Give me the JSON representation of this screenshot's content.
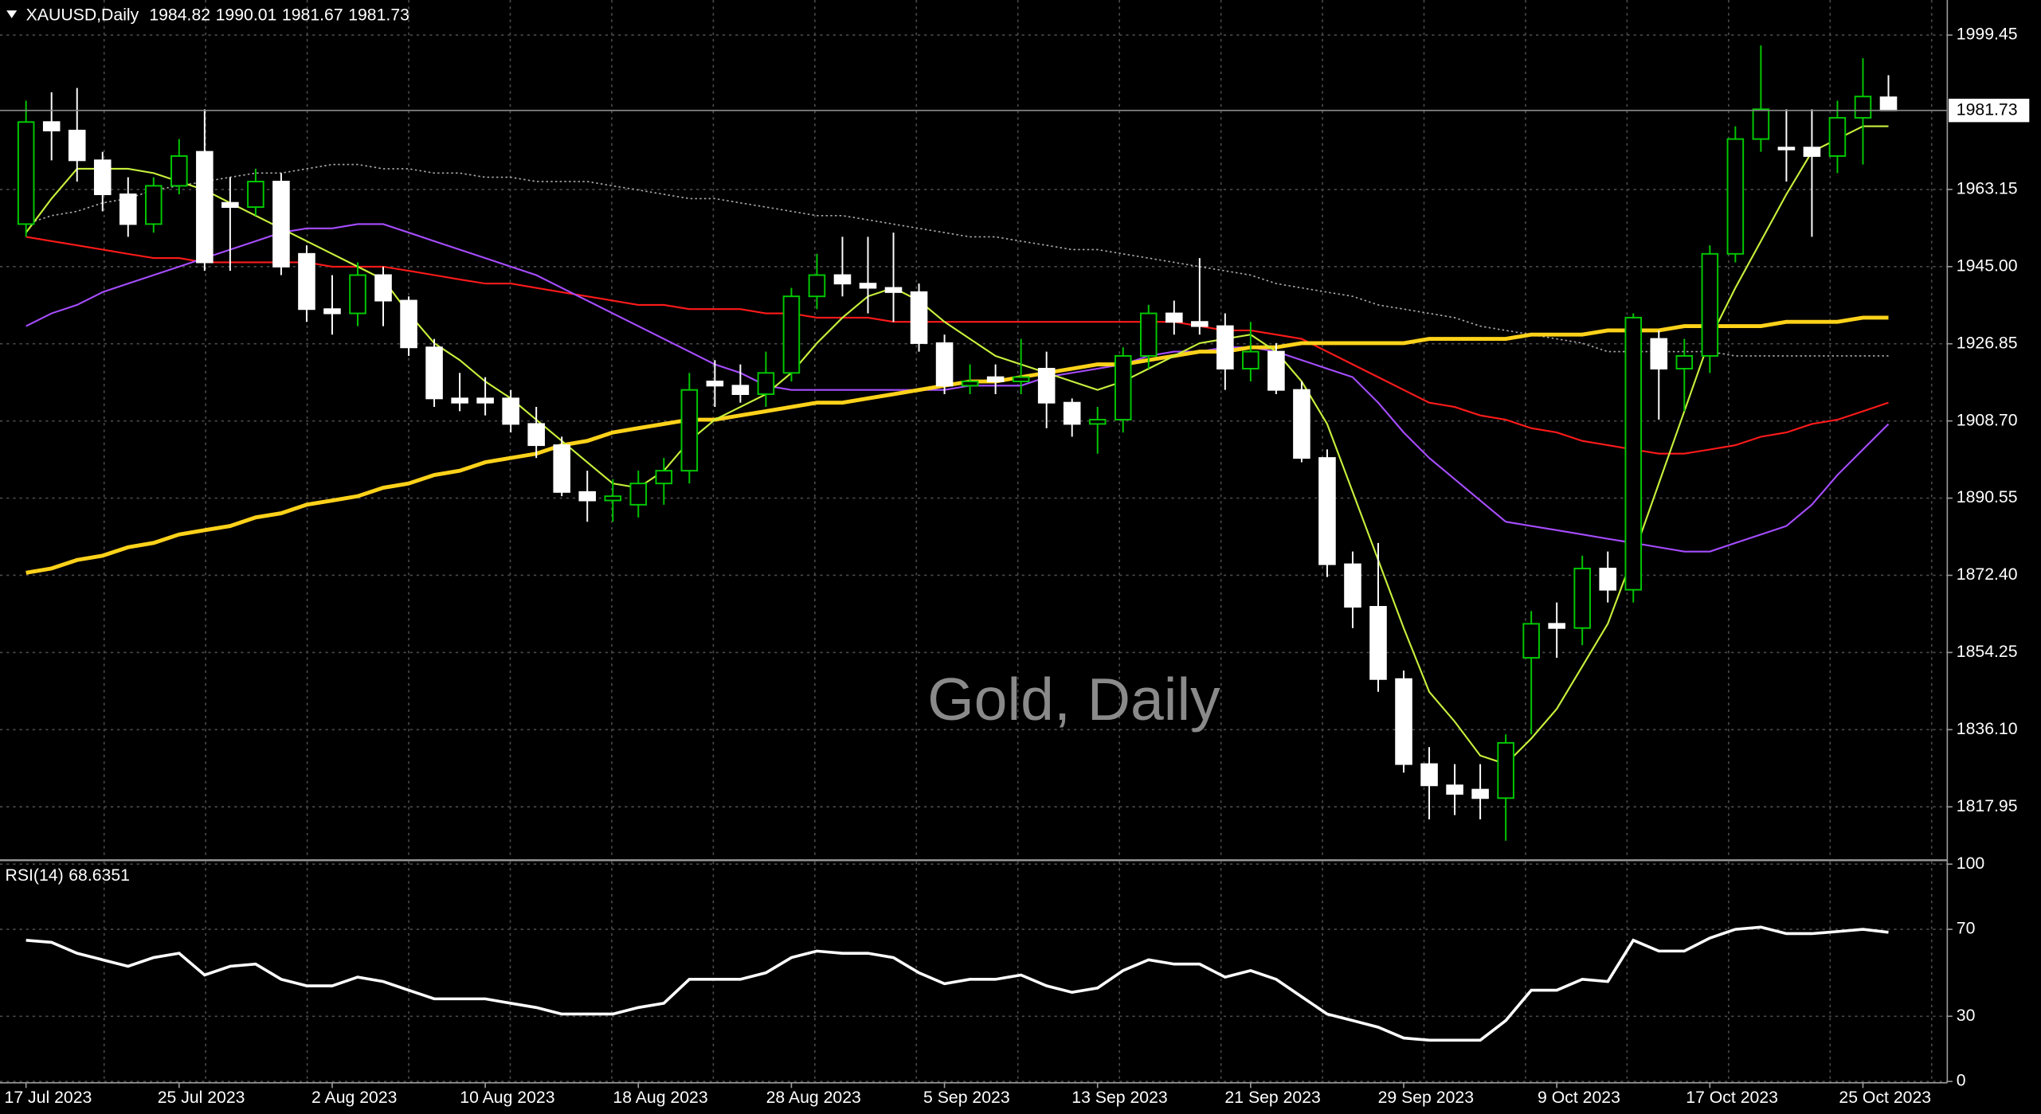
{
  "chart_data": {
    "type": "candlestick",
    "symbol": "XAUUSD,Daily",
    "watermark": "Gold, Daily",
    "background": "#000000",
    "bull_color": "#00c800",
    "bear_color": "#ffffff",
    "grid": true,
    "categories": [
      "17 Jul 2023",
      null,
      null,
      null,
      null,
      null,
      "25 Jul 2023",
      null,
      null,
      null,
      null,
      null,
      "2 Aug 2023",
      null,
      null,
      null,
      null,
      null,
      "10 Aug 2023",
      null,
      null,
      null,
      null,
      null,
      "18 Aug 2023",
      null,
      null,
      null,
      null,
      null,
      "28 Aug 2023",
      null,
      null,
      null,
      null,
      null,
      "5 Sep 2023",
      null,
      null,
      null,
      null,
      null,
      "13 Sep 2023",
      null,
      null,
      null,
      null,
      null,
      "21 Sep 2023",
      null,
      null,
      null,
      null,
      null,
      "29 Sep 2023",
      null,
      null,
      null,
      null,
      null,
      "9 Oct 2023",
      null,
      null,
      null,
      null,
      null,
      "17 Oct 2023",
      null,
      null,
      null,
      null,
      null,
      "25 Oct 2023",
      null
    ],
    "open": [
      1955,
      1979,
      1977,
      1970,
      1962,
      1955,
      1964,
      1972,
      1960,
      1959,
      1965,
      1948,
      1935,
      1934,
      1943,
      1937,
      1926,
      1914,
      1914,
      1914,
      1908,
      1903,
      1892,
      1890,
      1889,
      1894,
      1897,
      1918,
      1917,
      1915,
      1920,
      1938,
      1943,
      1941,
      1940,
      1939,
      1927,
      1917,
      1919,
      1918,
      1921,
      1913,
      1908,
      1909,
      1924,
      1934,
      1932,
      1931,
      1921,
      1925,
      1916,
      1900,
      1875,
      1865,
      1848,
      1828,
      1823,
      1822,
      1820,
      1853,
      1861,
      1860,
      1874,
      1869,
      1928,
      1921,
      1924,
      1948,
      1975,
      1973,
      1973,
      1971,
      1980,
      1984.82
    ],
    "high": [
      1984,
      1986,
      1987,
      1972,
      1966,
      1966,
      1975,
      1982,
      1966,
      1968,
      1967,
      1950,
      1943,
      1946,
      1945,
      1938,
      1928,
      1920,
      1919,
      1916,
      1912,
      1905,
      1897,
      1895,
      1897,
      1900,
      1920,
      1923,
      1922,
      1925,
      1940,
      1948,
      1952,
      1952,
      1953,
      1941,
      1929,
      1922,
      1922,
      1928,
      1925,
      1914,
      1912,
      1926,
      1936,
      1937,
      1947,
      1934,
      1932,
      1927,
      1918,
      1902,
      1878,
      1880,
      1850,
      1832,
      1828,
      1828,
      1835,
      1864,
      1866,
      1877,
      1878,
      1934,
      1930,
      1928,
      1950,
      1978,
      1997,
      1982,
      1982,
      1984,
      1994,
      1990.01
    ],
    "low": [
      1952,
      1970,
      1965,
      1958,
      1952,
      1953,
      1962,
      1944,
      1944,
      1957,
      1943,
      1932,
      1929,
      1931,
      1931,
      1924,
      1912,
      1911,
      1910,
      1906,
      1900,
      1891,
      1885,
      1885,
      1886,
      1889,
      1894,
      1912,
      1913,
      1912,
      1918,
      1935,
      1938,
      1934,
      1932,
      1925,
      1915,
      1915,
      1915,
      1915,
      1907,
      1905,
      1901,
      1906,
      1921,
      1929,
      1929,
      1916,
      1918,
      1915,
      1899,
      1872,
      1860,
      1845,
      1826,
      1815,
      1816,
      1815,
      1810,
      1835,
      1853,
      1856,
      1866,
      1866,
      1909,
      1911,
      1920,
      1946,
      1972,
      1965,
      1952,
      1967,
      1969,
      1981.67
    ],
    "close": [
      1979,
      1977,
      1970,
      1962,
      1955,
      1964,
      1971,
      1946,
      1959,
      1965,
      1945,
      1935,
      1934,
      1943,
      1937,
      1926,
      1914,
      1913,
      1913,
      1908,
      1903,
      1892,
      1890,
      1891,
      1894,
      1897,
      1916,
      1917,
      1915,
      1920,
      1938,
      1943,
      1941,
      1940,
      1939,
      1927,
      1917,
      1918,
      1918,
      1919,
      1913,
      1908,
      1909,
      1924,
      1934,
      1932,
      1931,
      1921,
      1925,
      1916,
      1900,
      1875,
      1865,
      1848,
      1828,
      1823,
      1821,
      1820,
      1833,
      1861,
      1860,
      1874,
      1869,
      1933,
      1921,
      1924,
      1948,
      1975,
      1982,
      1973,
      1971,
      1980,
      1985,
      1981.73
    ],
    "overlays": [
      {
        "color": "#aaaaaa",
        "style": "dotted",
        "values": [
          1955,
          1957,
          1958,
          1960,
          1961,
          1963,
          1964,
          1965,
          1966,
          1967,
          1967,
          1968,
          1969,
          1969,
          1968,
          1968,
          1967,
          1967,
          1966,
          1966,
          1965,
          1965,
          1965,
          1964,
          1963,
          1962,
          1961,
          1961,
          1960,
          1959,
          1958,
          1957,
          1957,
          1956,
          1955,
          1954,
          1953,
          1952,
          1952,
          1951,
          1950,
          1949,
          1949,
          1948,
          1947,
          1946,
          1945,
          1944,
          1943,
          1941,
          1940,
          1939,
          1938,
          1936,
          1935,
          1934,
          1933,
          1931,
          1930,
          1929,
          1928,
          1927,
          1925,
          1925,
          1925,
          1925,
          1925,
          1924,
          1924,
          1924,
          1924,
          1924,
          1924,
          1924
        ]
      },
      {
        "color": "#ff1a1a",
        "style": "thin",
        "values": [
          1952,
          1951,
          1950,
          1949,
          1948,
          1947,
          1947,
          1946,
          1946,
          1946,
          1946,
          1946,
          1945,
          1945,
          1945,
          1944,
          1943,
          1942,
          1941,
          1941,
          1940,
          1939,
          1938,
          1937,
          1936,
          1936,
          1935,
          1935,
          1935,
          1934,
          1934,
          1933,
          1933,
          1933,
          1932,
          1932,
          1932,
          1932,
          1932,
          1932,
          1932,
          1932,
          1932,
          1932,
          1932,
          1932,
          1931,
          1930,
          1930,
          1929,
          1928,
          1925,
          1922,
          1919,
          1916,
          1913,
          1912,
          1910,
          1909,
          1907,
          1906,
          1904,
          1903,
          1902,
          1901,
          1901,
          1902,
          1903,
          1905,
          1906,
          1908,
          1909,
          1911,
          1913
        ]
      },
      {
        "color": "#a64dff",
        "style": "thin",
        "values": [
          1931,
          1934,
          1936,
          1939,
          1941,
          1943,
          1945,
          1947,
          1949,
          1951,
          1953,
          1954,
          1954,
          1955,
          1955,
          1953,
          1951,
          1949,
          1947,
          1945,
          1943,
          1940,
          1937,
          1934,
          1931,
          1928,
          1925,
          1922,
          1920,
          1917,
          1916,
          1916,
          1916,
          1916,
          1916,
          1916,
          1916,
          1917,
          1917,
          1917,
          1919,
          1920,
          1921,
          1922,
          1924,
          1925,
          1925,
          1926,
          1926,
          1925,
          1923,
          1921,
          1919,
          1913,
          1906,
          1900,
          1895,
          1890,
          1885,
          1884,
          1883,
          1882,
          1881,
          1880,
          1879,
          1878,
          1878,
          1880,
          1882,
          1884,
          1889,
          1896,
          1902,
          1908
        ]
      },
      {
        "color": "#ffd21a",
        "style": "thick",
        "values": [
          1873,
          1874,
          1876,
          1877,
          1879,
          1880,
          1882,
          1883,
          1884,
          1886,
          1887,
          1889,
          1890,
          1891,
          1893,
          1894,
          1896,
          1897,
          1899,
          1900,
          1901,
          1903,
          1904,
          1906,
          1907,
          1908,
          1909,
          1909,
          1910,
          1911,
          1912,
          1913,
          1913,
          1914,
          1915,
          1916,
          1917,
          1918,
          1918,
          1919,
          1920,
          1921,
          1922,
          1922,
          1923,
          1924,
          1925,
          1925,
          1926,
          1926,
          1927,
          1927,
          1927,
          1927,
          1927,
          1928,
          1928,
          1928,
          1928,
          1929,
          1929,
          1929,
          1930,
          1930,
          1930,
          1931,
          1931,
          1931,
          1931,
          1932,
          1932,
          1932,
          1933,
          1933
        ]
      },
      {
        "color": "#c8f03c",
        "style": "thin",
        "values": [
          1953,
          1961,
          1968,
          1968,
          1968,
          1967,
          1965,
          1963,
          1960,
          1957,
          1954,
          1951,
          1948,
          1945,
          1942,
          1934,
          1927,
          1923,
          1918,
          1914,
          1909,
          1904,
          1899,
          1894,
          1893,
          1897,
          1904,
          1909,
          1912,
          1915,
          1920,
          1927,
          1933,
          1938,
          1940,
          1937,
          1932,
          1928,
          1924,
          1922,
          1920,
          1918,
          1916,
          1918,
          1921,
          1924,
          1927,
          1928,
          1929,
          1925,
          1918,
          1908,
          1892,
          1876,
          1860,
          1845,
          1838,
          1830,
          1828,
          1834,
          1841,
          1851,
          1861,
          1877,
          1894,
          1911,
          1928,
          1940,
          1951,
          1962,
          1972,
          1975,
          1978,
          1978
        ]
      }
    ],
    "ylim": [
      1805.7,
      2007.7
    ],
    "yticks": [
      1999.45,
      1963.15,
      {
        "value": 1945,
        "label": "1945.00"
      },
      1926.85,
      {
        "value": 1908.7,
        "label": "1908.70"
      },
      1890.55,
      {
        "value": 1872.4,
        "label": "1872.40"
      },
      1854.25,
      {
        "value": 1836.1,
        "label": "1836.10"
      },
      1817.95
    ],
    "rsi": {
      "label": "RSI(14)",
      "color": "#ffffff",
      "ylim": [
        0,
        100
      ],
      "yticks": [
        100,
        70,
        30,
        0
      ],
      "values": [
        65,
        64,
        59,
        56,
        53,
        57,
        59,
        49,
        53,
        54,
        47,
        44,
        44,
        48,
        46,
        42,
        38,
        38,
        38,
        36,
        34,
        31,
        31,
        31,
        34,
        36,
        47,
        47,
        47,
        50,
        57,
        60,
        59,
        59,
        57,
        50,
        45,
        47,
        47,
        49,
        44,
        41,
        43,
        51,
        56,
        54,
        54,
        48,
        51,
        47,
        39,
        31,
        28,
        25,
        20,
        19,
        19,
        19,
        28,
        42,
        42,
        47,
        46,
        65,
        60,
        60,
        66,
        70,
        71,
        68,
        68,
        69,
        70,
        68.6351
      ]
    }
  }
}
